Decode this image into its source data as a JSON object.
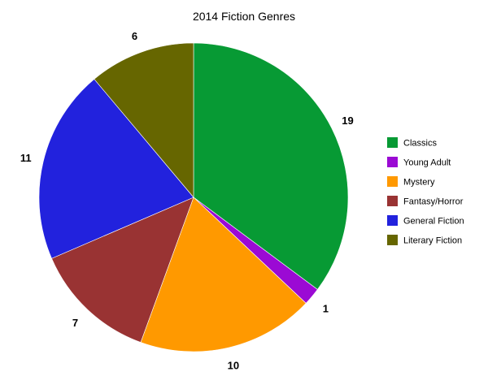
{
  "chart_data": {
    "type": "pie",
    "title": "2014 Fiction Genres",
    "legend_position": "right",
    "slices": [
      {
        "label": "Classics",
        "value": 19,
        "color": "#079a34"
      },
      {
        "label": "Young Adult",
        "value": 1,
        "color": "#9b0ad4"
      },
      {
        "label": "Mystery",
        "value": 10,
        "color": "#ff9900"
      },
      {
        "label": "Fantasy/Horror",
        "value": 7,
        "color": "#993333"
      },
      {
        "label": "General Fiction",
        "value": 11,
        "color": "#2222dd"
      },
      {
        "label": "Literary Fiction",
        "value": 6,
        "color": "#666600"
      }
    ]
  }
}
